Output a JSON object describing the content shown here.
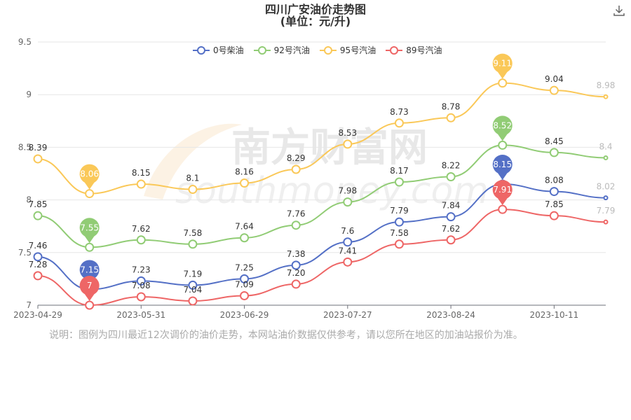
{
  "title": "四川广安油价走势图",
  "subtitle": "(单位：元/升)",
  "note": "说明：图例为四川最近12次调价的油价走势，本网站油价数据仅供参考，请以您所在地区的加油站报价为准。",
  "watermark": {
    "cn": "南方财富网",
    "en": "southmoney.com"
  },
  "download_icon": "download-icon",
  "chart_data": {
    "type": "line",
    "xlabels": [
      "2023-04-29",
      "2023-05-31",
      "2023-06-29",
      "2023-07-27",
      "2023-08-24",
      "2023-10-11"
    ],
    "ylim": [
      7,
      9.5
    ],
    "yticks": [
      "7",
      "7.5",
      "8",
      "8.5",
      "9",
      "9.5"
    ],
    "grid": true,
    "legend": "top",
    "series": [
      {
        "name": "0号柴油",
        "color": "#5470c6",
        "values": [
          7.46,
          7.15,
          7.23,
          7.19,
          7.25,
          7.38,
          7.6,
          7.79,
          7.84,
          8.15,
          8.08,
          8.02
        ],
        "labels": [
          "7.46",
          "7.15",
          "7.23",
          "7.19",
          "7.25",
          "7.38",
          "7.6",
          "7.79",
          "7.84",
          "8.15",
          "8.08",
          "8.02"
        ]
      },
      {
        "name": "92号汽油",
        "color": "#91cc75",
        "values": [
          7.85,
          7.55,
          7.62,
          7.58,
          7.64,
          7.76,
          7.98,
          8.17,
          8.22,
          8.52,
          8.45,
          8.4
        ],
        "labels": [
          "7.85",
          "7.55",
          "7.62",
          "7.58",
          "7.64",
          "7.76",
          "7.98",
          "8.17",
          "8.22",
          "8.52",
          "8.45",
          "8.4"
        ]
      },
      {
        "name": "95号汽油",
        "color": "#fac858",
        "values": [
          8.39,
          8.06,
          8.15,
          8.1,
          8.16,
          8.29,
          8.53,
          8.73,
          8.78,
          9.11,
          9.04,
          8.98
        ],
        "labels": [
          "8.39",
          "8.06",
          "8.15",
          "8.1",
          "8.16",
          "8.29",
          "8.53",
          "8.73",
          "8.78",
          "9.11",
          "9.04",
          "8.98"
        ]
      },
      {
        "name": "89号汽油",
        "color": "#ee6666",
        "values": [
          7.28,
          7,
          7.08,
          7.04,
          7.09,
          7.2,
          7.41,
          7.58,
          7.62,
          7.91,
          7.85,
          7.79
        ],
        "labels": [
          "7.28",
          "7",
          "7.08",
          "7.04",
          "7.09",
          "7.20",
          "7.41",
          "7.58",
          "7.62",
          "7.91",
          "7.85",
          "7.79"
        ]
      }
    ],
    "pins": [
      {
        "series": 0,
        "index": 1
      },
      {
        "series": 0,
        "index": 9
      },
      {
        "series": 1,
        "index": 1
      },
      {
        "series": 1,
        "index": 9
      },
      {
        "series": 2,
        "index": 1
      },
      {
        "series": 2,
        "index": 9
      },
      {
        "series": 3,
        "index": 1
      },
      {
        "series": 3,
        "index": 9
      }
    ]
  }
}
